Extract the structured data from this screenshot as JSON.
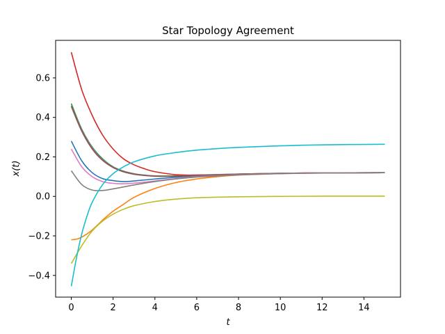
{
  "chart_data": {
    "type": "line",
    "title": "Star Topology Agreement",
    "xlabel": "t",
    "ylabel": "x(t)",
    "xlim": [
      -0.75,
      15.75
    ],
    "ylim": [
      -0.51,
      0.79
    ],
    "xticks": [
      0,
      2,
      4,
      6,
      8,
      10,
      12,
      14
    ],
    "yticks": [
      -0.4,
      -0.2,
      0.0,
      0.2,
      0.4,
      0.6
    ],
    "ytick_labels": [
      "−0.4",
      "−0.2",
      "0.0",
      "0.2",
      "0.4",
      "0.6"
    ],
    "grid": false,
    "legend": "none",
    "series": [
      {
        "color": "#1f77b4",
        "points": [
          [
            0,
            0.28
          ],
          [
            0.5,
            0.18
          ],
          [
            1,
            0.12
          ],
          [
            1.5,
            0.09
          ],
          [
            2,
            0.08
          ],
          [
            2.5,
            0.075
          ],
          [
            3,
            0.078
          ],
          [
            4,
            0.088
          ],
          [
            5,
            0.097
          ],
          [
            6,
            0.104
          ],
          [
            8,
            0.112
          ],
          [
            10,
            0.117
          ],
          [
            12,
            0.119
          ],
          [
            15,
            0.12
          ]
        ]
      },
      {
        "color": "#ff7f0e",
        "points": [
          [
            0,
            -0.22
          ],
          [
            0.3,
            -0.215
          ],
          [
            0.6,
            -0.2
          ],
          [
            1,
            -0.17
          ],
          [
            1.5,
            -0.12
          ],
          [
            2,
            -0.075
          ],
          [
            2.5,
            -0.04
          ],
          [
            3,
            -0.005
          ],
          [
            4,
            0.04
          ],
          [
            5,
            0.07
          ],
          [
            6,
            0.088
          ],
          [
            7,
            0.1
          ],
          [
            8,
            0.108
          ],
          [
            10,
            0.115
          ],
          [
            12,
            0.118
          ],
          [
            15,
            0.12
          ]
        ]
      },
      {
        "color": "#2ca02c",
        "points": [
          [
            0,
            0.47
          ],
          [
            0.5,
            0.34
          ],
          [
            1,
            0.25
          ],
          [
            1.5,
            0.19
          ],
          [
            2,
            0.15
          ],
          [
            2.5,
            0.128
          ],
          [
            3,
            0.115
          ],
          [
            3.5,
            0.108
          ],
          [
            4,
            0.104
          ],
          [
            5,
            0.104
          ],
          [
            6,
            0.108
          ],
          [
            8,
            0.113
          ],
          [
            10,
            0.117
          ],
          [
            12,
            0.119
          ],
          [
            15,
            0.12
          ]
        ]
      },
      {
        "color": "#d62728",
        "points": [
          [
            0,
            0.73
          ],
          [
            0.5,
            0.54
          ],
          [
            1,
            0.41
          ],
          [
            1.5,
            0.31
          ],
          [
            2,
            0.24
          ],
          [
            2.5,
            0.19
          ],
          [
            3,
            0.16
          ],
          [
            3.5,
            0.14
          ],
          [
            4,
            0.125
          ],
          [
            5,
            0.11
          ],
          [
            6,
            0.108
          ],
          [
            8,
            0.111
          ],
          [
            10,
            0.116
          ],
          [
            12,
            0.119
          ],
          [
            15,
            0.12
          ]
        ]
      },
      {
        "color": "#9467bd",
        "points": [
          [
            0,
            0.46
          ],
          [
            0.5,
            0.335
          ],
          [
            1,
            0.245
          ],
          [
            1.5,
            0.185
          ],
          [
            2,
            0.148
          ],
          [
            2.5,
            0.126
          ],
          [
            3,
            0.114
          ],
          [
            3.5,
            0.107
          ],
          [
            4,
            0.103
          ],
          [
            5,
            0.103
          ],
          [
            6,
            0.107
          ],
          [
            8,
            0.113
          ],
          [
            10,
            0.117
          ],
          [
            12,
            0.119
          ],
          [
            15,
            0.12
          ]
        ]
      },
      {
        "color": "#8c564b",
        "points": [
          [
            0,
            0.455
          ],
          [
            0.5,
            0.33
          ],
          [
            1,
            0.24
          ],
          [
            1.5,
            0.182
          ],
          [
            2,
            0.146
          ],
          [
            2.5,
            0.124
          ],
          [
            3,
            0.112
          ],
          [
            3.5,
            0.106
          ],
          [
            4,
            0.102
          ],
          [
            5,
            0.102
          ],
          [
            6,
            0.106
          ],
          [
            8,
            0.113
          ],
          [
            10,
            0.117
          ],
          [
            12,
            0.119
          ],
          [
            15,
            0.12
          ]
        ]
      },
      {
        "color": "#e377c2",
        "points": [
          [
            0,
            0.24
          ],
          [
            0.5,
            0.15
          ],
          [
            1,
            0.1
          ],
          [
            1.5,
            0.075
          ],
          [
            2,
            0.066
          ],
          [
            2.5,
            0.064
          ],
          [
            3,
            0.067
          ],
          [
            4,
            0.078
          ],
          [
            5,
            0.09
          ],
          [
            6,
            0.1
          ],
          [
            8,
            0.11
          ],
          [
            10,
            0.116
          ],
          [
            12,
            0.119
          ],
          [
            15,
            0.12
          ]
        ]
      },
      {
        "color": "#7f7f7f",
        "points": [
          [
            0,
            0.13
          ],
          [
            0.5,
            0.06
          ],
          [
            1,
            0.032
          ],
          [
            1.5,
            0.03
          ],
          [
            2,
            0.038
          ],
          [
            3,
            0.058
          ],
          [
            4,
            0.075
          ],
          [
            5,
            0.088
          ],
          [
            6,
            0.098
          ],
          [
            8,
            0.109
          ],
          [
            10,
            0.115
          ],
          [
            12,
            0.118
          ],
          [
            15,
            0.12
          ]
        ]
      },
      {
        "color": "#bcbd22",
        "points": [
          [
            0,
            -0.34
          ],
          [
            0.5,
            -0.25
          ],
          [
            1,
            -0.175
          ],
          [
            1.5,
            -0.125
          ],
          [
            2,
            -0.09
          ],
          [
            2.5,
            -0.065
          ],
          [
            3,
            -0.047
          ],
          [
            4,
            -0.026
          ],
          [
            5,
            -0.014
          ],
          [
            6,
            -0.007
          ],
          [
            8,
            -0.002
          ],
          [
            10,
            0.0
          ],
          [
            12,
            0.001
          ],
          [
            15,
            0.001
          ]
        ]
      },
      {
        "color": "#17becf",
        "points": [
          [
            0,
            -0.455
          ],
          [
            0.25,
            -0.31
          ],
          [
            0.5,
            -0.19
          ],
          [
            0.75,
            -0.1
          ],
          [
            1,
            -0.03
          ],
          [
            1.5,
            0.06
          ],
          [
            2,
            0.115
          ],
          [
            2.5,
            0.15
          ],
          [
            3,
            0.175
          ],
          [
            4,
            0.205
          ],
          [
            5,
            0.222
          ],
          [
            6,
            0.234
          ],
          [
            7,
            0.242
          ],
          [
            8,
            0.248
          ],
          [
            10,
            0.256
          ],
          [
            12,
            0.261
          ],
          [
            15,
            0.264
          ]
        ]
      }
    ]
  }
}
